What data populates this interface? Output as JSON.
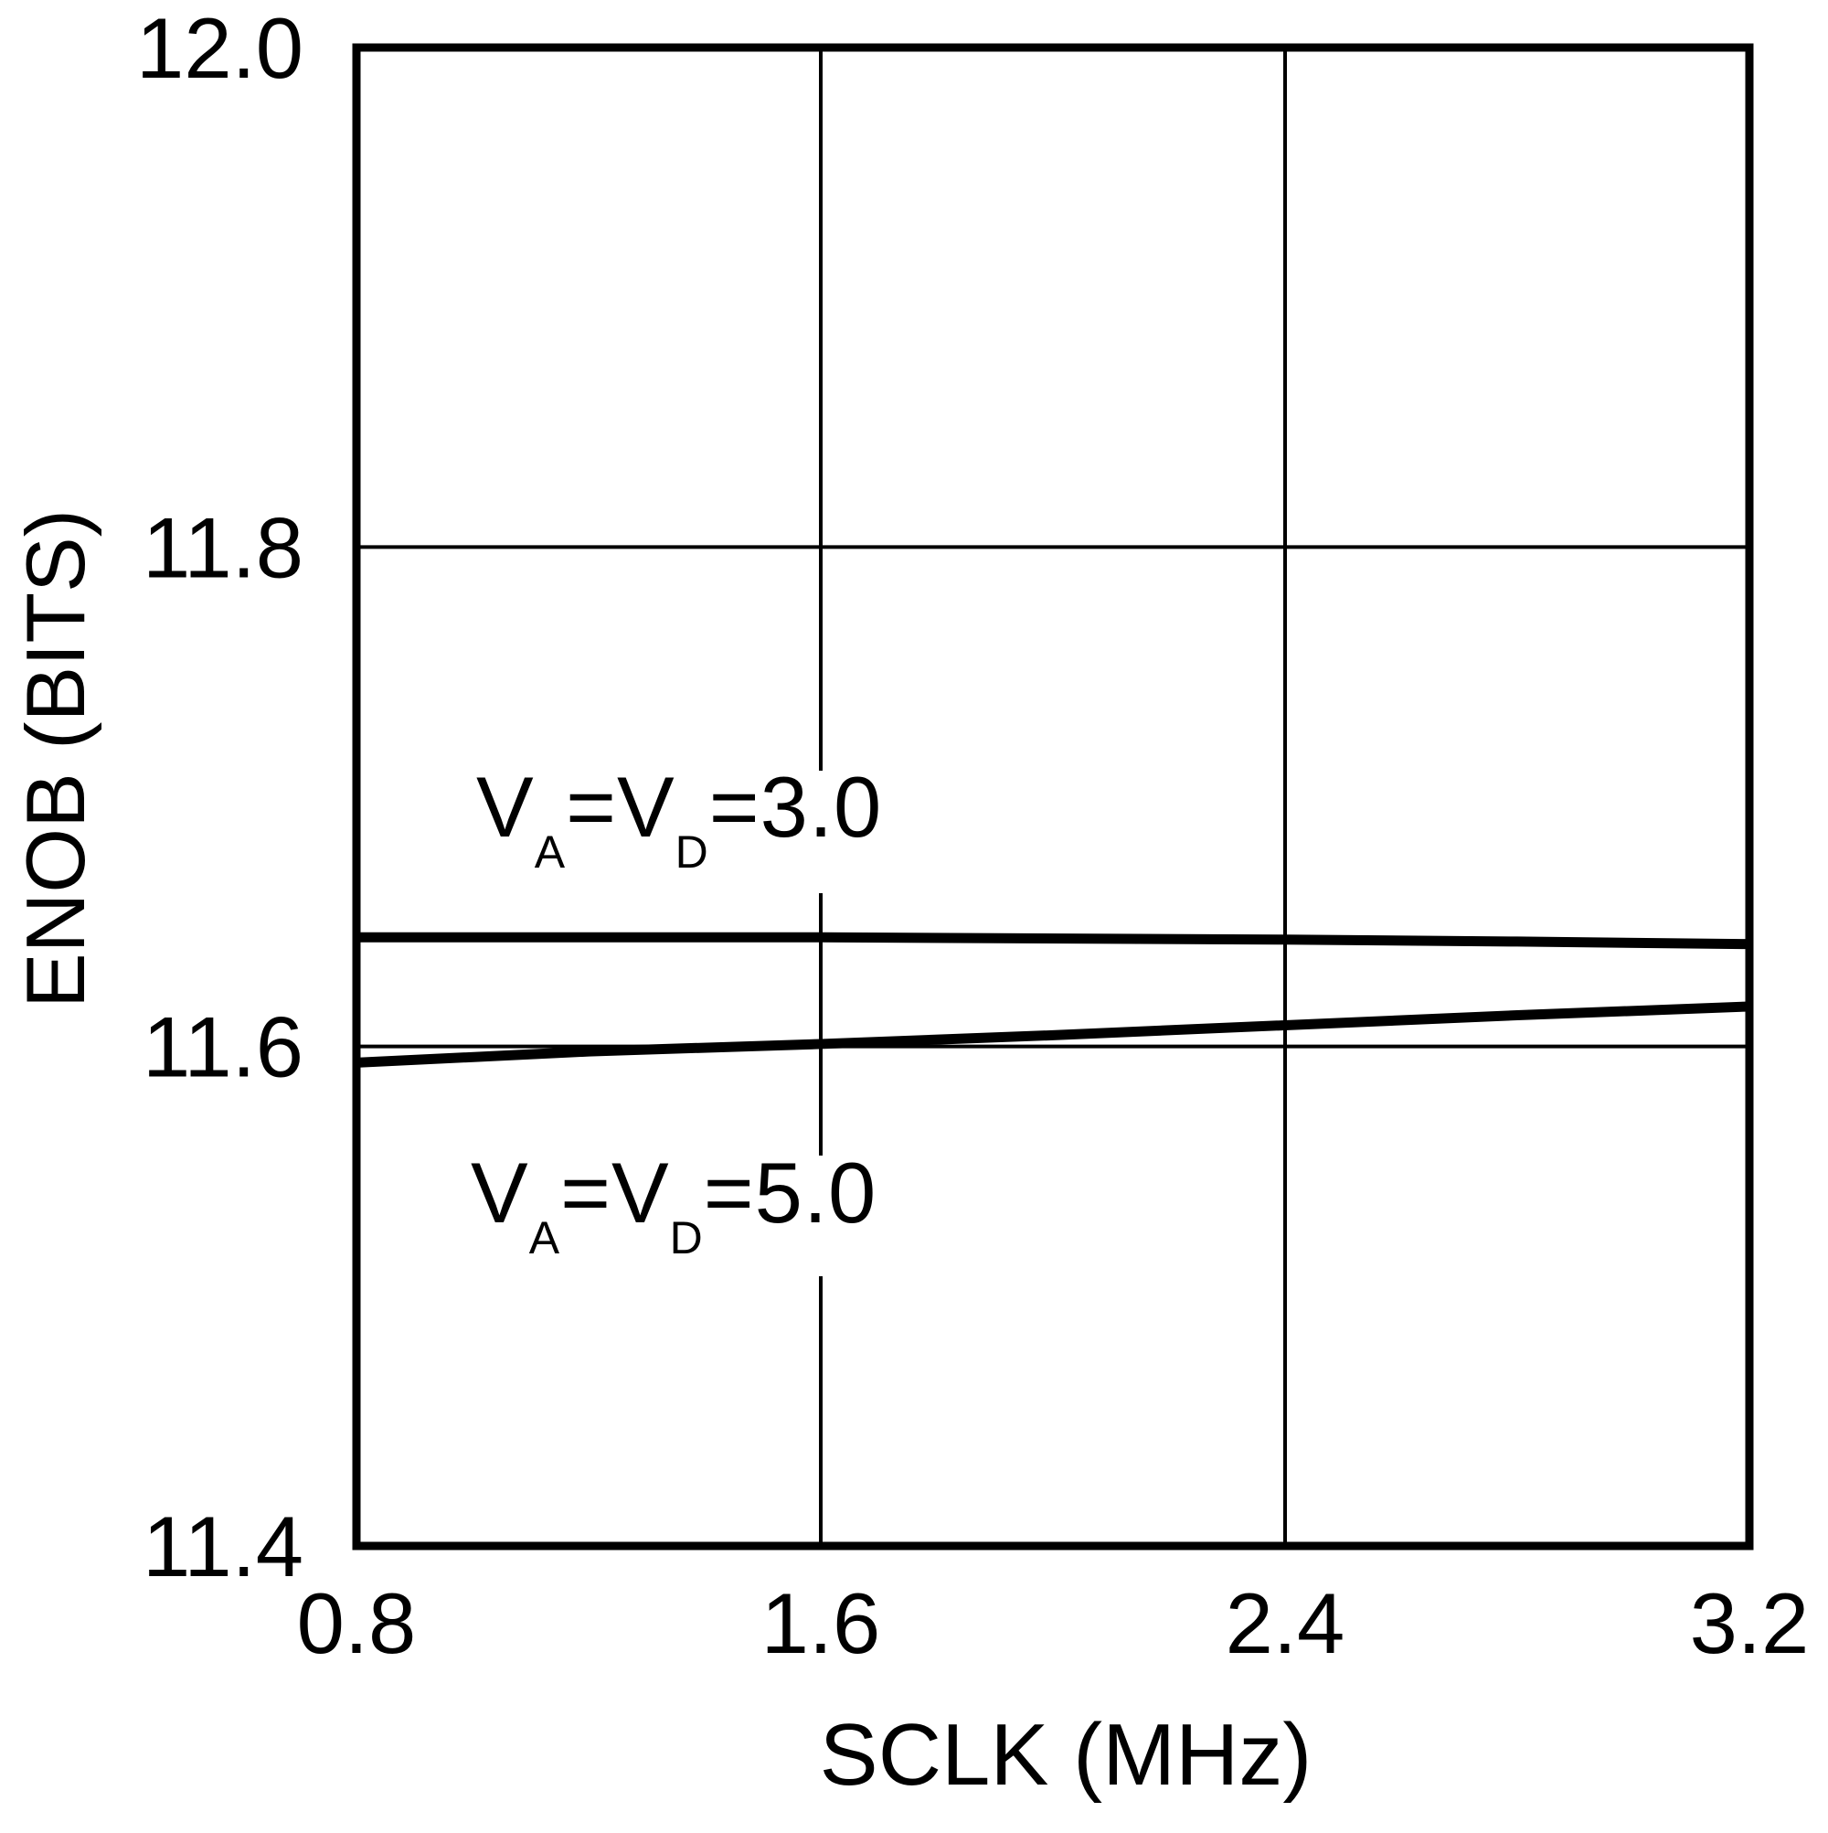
{
  "chart_data": {
    "type": "line",
    "title": "",
    "xlabel": "SCLK (MHz)",
    "ylabel": "ENOB (BITS)",
    "xlim": [
      0.8,
      3.2
    ],
    "ylim": [
      11.4,
      12.0
    ],
    "x_ticks": [
      {
        "v": 0.8,
        "label": "0.8"
      },
      {
        "v": 1.6,
        "label": "1.6"
      },
      {
        "v": 2.4,
        "label": "2.4"
      },
      {
        "v": 3.2,
        "label": "3.2"
      }
    ],
    "y_ticks": [
      {
        "v": 11.4,
        "label": "11.4"
      },
      {
        "v": 11.6,
        "label": "11.6"
      },
      {
        "v": 11.8,
        "label": "11.8"
      },
      {
        "v": 12.0,
        "label": "12.0"
      }
    ],
    "grid": true,
    "legend_position": "inline-annotations",
    "line_color": "#000000",
    "background": "#ffffff",
    "series": [
      {
        "name": "VA=VD=3.0",
        "annotation_parts": [
          {
            "t": "V"
          },
          {
            "t": "A",
            "sub": true
          },
          {
            "t": "=V"
          },
          {
            "t": "D",
            "sub": true
          },
          {
            "t": "=3.0"
          }
        ],
        "x": [
          0.8,
          1.6,
          2.4,
          2.8,
          3.2
        ],
        "y": [
          11.6437,
          11.6437,
          11.6428,
          11.642,
          11.641
        ]
      },
      {
        "name": "VA=VD=5.0",
        "annotation_parts": [
          {
            "t": "V"
          },
          {
            "t": "A",
            "sub": true
          },
          {
            "t": "=V"
          },
          {
            "t": "D",
            "sub": true
          },
          {
            "t": "=5.0"
          }
        ],
        "x": [
          0.8,
          1.2,
          1.6,
          2.0,
          2.4,
          2.8,
          3.2
        ],
        "y": [
          11.5935,
          11.598,
          11.601,
          11.6045,
          11.6085,
          11.6125,
          11.616
        ]
      }
    ]
  }
}
